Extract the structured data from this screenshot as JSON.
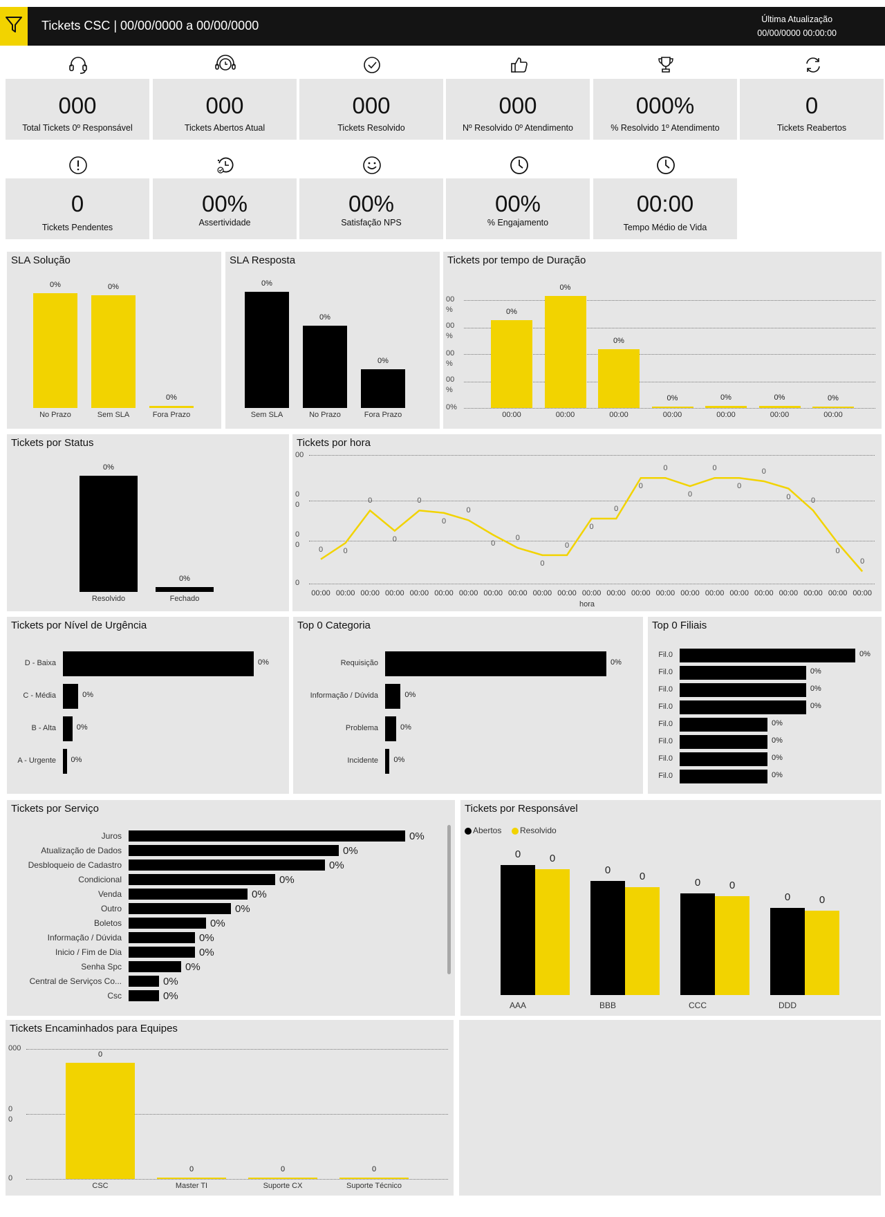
{
  "header": {
    "title": "Tickets CSC | 00/00/0000 a 00/00/0000",
    "update_label": "Última Atualização",
    "update_value": "00/00/0000 00:00:00"
  },
  "kpis": [
    {
      "value": "000",
      "label": "Total Tickets 0º Responsável",
      "icon": "headset-icon"
    },
    {
      "value": "000",
      "label": "Tickets Abertos Atual",
      "icon": "support-agent-icon"
    },
    {
      "value": "000",
      "label": "Tickets Resolvido",
      "icon": "check-circle-icon"
    },
    {
      "value": "000",
      "label": "Nº Resolvido 0º Atendimento",
      "icon": "thumbs-up-icon"
    },
    {
      "value": "000%",
      "label": "% Resolvido 1º Atendimento",
      "icon": "trophy-icon"
    },
    {
      "value": "0",
      "label": "Tickets Reabertos",
      "icon": "refresh-icon"
    },
    {
      "value": "0",
      "label": "Tickets Pendentes",
      "icon": "alert-circle-icon"
    },
    {
      "value": "00%",
      "label": "Assertividade",
      "icon": "clock-check-icon"
    },
    {
      "value": "00%",
      "label": "Satisfação NPS",
      "icon": "smiley-icon"
    },
    {
      "value": "00%",
      "label": "% Engajamento",
      "icon": "clock-icon"
    },
    {
      "value": "00:00",
      "label": "Tempo Médio de Vida",
      "icon": "clock-icon"
    }
  ],
  "chart_data": [
    {
      "type": "bar",
      "title": "SLA Solução",
      "categories": [
        "No Prazo",
        "Sem SLA",
        "Fora Prazo"
      ],
      "values": [
        48,
        47,
        1
      ],
      "labels": [
        "0%",
        "0%",
        "0%"
      ],
      "color": "#f2d300"
    },
    {
      "type": "bar",
      "title": "SLA Resposta",
      "categories": [
        "Sem SLA",
        "No Prazo",
        "Fora Prazo"
      ],
      "values": [
        48,
        34,
        16
      ],
      "labels": [
        "0%",
        "0%",
        "0%"
      ],
      "color": "#000000"
    },
    {
      "type": "bar",
      "title": "Tickets por tempo de Duração",
      "categories": [
        "00:00",
        "00:00",
        "00:00",
        "00:00",
        "00:00",
        "00:00",
        "00:00"
      ],
      "values": [
        33,
        42,
        22,
        0.3,
        0.8,
        0.8,
        0.5
      ],
      "labels": [
        "0%",
        "0%",
        "0%",
        "0%",
        "0%",
        "0%",
        "0%"
      ],
      "ytick_labels": [
        "00\n%",
        "00\n%",
        "00\n%",
        "00\n%",
        "0%"
      ],
      "color": "#f2d300"
    },
    {
      "type": "bar",
      "title": "Tickets por Status",
      "categories": [
        "Resolvido",
        "Fechado"
      ],
      "values": [
        98,
        4
      ],
      "labels": [
        "0%",
        "0%"
      ],
      "color": "#000000"
    },
    {
      "type": "line",
      "title": "Tickets por hora",
      "xlabel": "hora",
      "x": [
        "00:00",
        "00:00",
        "00:00",
        "00:00",
        "00:00",
        "00:00",
        "00:00",
        "00:00",
        "00:00",
        "00:00",
        "00:00",
        "00:00",
        "00:00",
        "00:00",
        "00:00",
        "00:00",
        "00:00",
        "00:00",
        "00:00",
        "00:00",
        "00:00",
        "00:00",
        "00:00"
      ],
      "values": [
        3,
        5,
        9,
        6.5,
        9,
        8.7,
        7.8,
        6,
        4.4,
        3.5,
        3.5,
        8,
        8,
        13,
        13,
        12,
        13,
        13,
        12.6,
        11.7,
        9,
        5,
        1.5
      ],
      "labels": [
        "0",
        "0",
        "0",
        "0",
        "0",
        "0",
        "0",
        "0",
        "0",
        "0",
        "0",
        "0",
        "0",
        "0",
        "0",
        "0",
        "0",
        "0",
        "0",
        "0",
        "0",
        "0",
        "0"
      ],
      "ytick_labels": [
        "00",
        "0\n0",
        "0\n0",
        "0"
      ],
      "ylim": [
        0,
        16
      ],
      "color": "#f2d300"
    },
    {
      "type": "bar",
      "orientation": "horizontal",
      "title": "Tickets por Nível de Urgência",
      "categories": [
        "D - Baixa",
        "C - Média",
        "B - Alta",
        "A - Urgente"
      ],
      "values": [
        100,
        8,
        5,
        2
      ],
      "labels": [
        "0%",
        "0%",
        "0%",
        "0%"
      ]
    },
    {
      "type": "bar",
      "orientation": "horizontal",
      "title": "Top 0 Categoria",
      "categories": [
        "Requisição",
        "Informação / Dúvida",
        "Problema",
        "Incidente"
      ],
      "values": [
        100,
        7,
        5,
        2
      ],
      "labels": [
        "0%",
        "0%",
        "0%",
        "0%"
      ]
    },
    {
      "type": "bar",
      "orientation": "horizontal",
      "title": "Top 0 Filiais",
      "categories": [
        "Fil.0",
        "Fil.0",
        "Fil.0",
        "Fil.0",
        "Fil.0",
        "Fil.0",
        "Fil.0",
        "Fil.0"
      ],
      "values": [
        100,
        72,
        72,
        72,
        50,
        50,
        50,
        50
      ],
      "labels": [
        "0%",
        "0%",
        "0%",
        "0%",
        "0%",
        "0%",
        "0%",
        "0%"
      ]
    },
    {
      "type": "bar",
      "orientation": "horizontal",
      "title": "Tickets por Serviço",
      "categories": [
        "Juros",
        "Atualização de Dados",
        "Desbloqueio de Cadastro",
        "Condicional",
        "Venda",
        "Outro",
        "Boletos",
        "Informação / Dúvida",
        "Inicio / Fim de Dia",
        "Senha Spc",
        "Central de Serviços Co...",
        "Csc"
      ],
      "values": [
        100,
        76,
        71,
        53,
        43,
        37,
        28,
        24,
        24,
        19,
        11,
        11
      ],
      "labels": [
        "0%",
        "0%",
        "0%",
        "0%",
        "0%",
        "0%",
        "0%",
        "0%",
        "0%",
        "0%",
        "0%",
        "0%"
      ]
    },
    {
      "type": "bar",
      "title": "Tickets por Responsável",
      "categories": [
        "AAA",
        "BBB",
        "CCC",
        "DDD"
      ],
      "series": [
        {
          "name": "Abertos",
          "values": [
            100,
            88,
            78,
            67
          ],
          "labels": [
            "0",
            "0",
            "0",
            "0"
          ],
          "color": "#000000"
        },
        {
          "name": "Resolvido",
          "values": [
            97,
            83,
            76,
            65
          ],
          "labels": [
            "0",
            "0",
            "0",
            "0"
          ],
          "color": "#f2d300"
        }
      ],
      "legend": "top-left"
    },
    {
      "type": "bar",
      "title": "Tickets Encaminhados para Equipes",
      "categories": [
        "CSC",
        "Master TI",
        "Suporte CX",
        "Suporte Técnico"
      ],
      "values": [
        100,
        1,
        1,
        1
      ],
      "labels": [
        "0",
        "0",
        "0",
        "0"
      ],
      "ytick_labels": [
        "000",
        "0\n0",
        "0"
      ],
      "color": "#f2d300"
    }
  ]
}
